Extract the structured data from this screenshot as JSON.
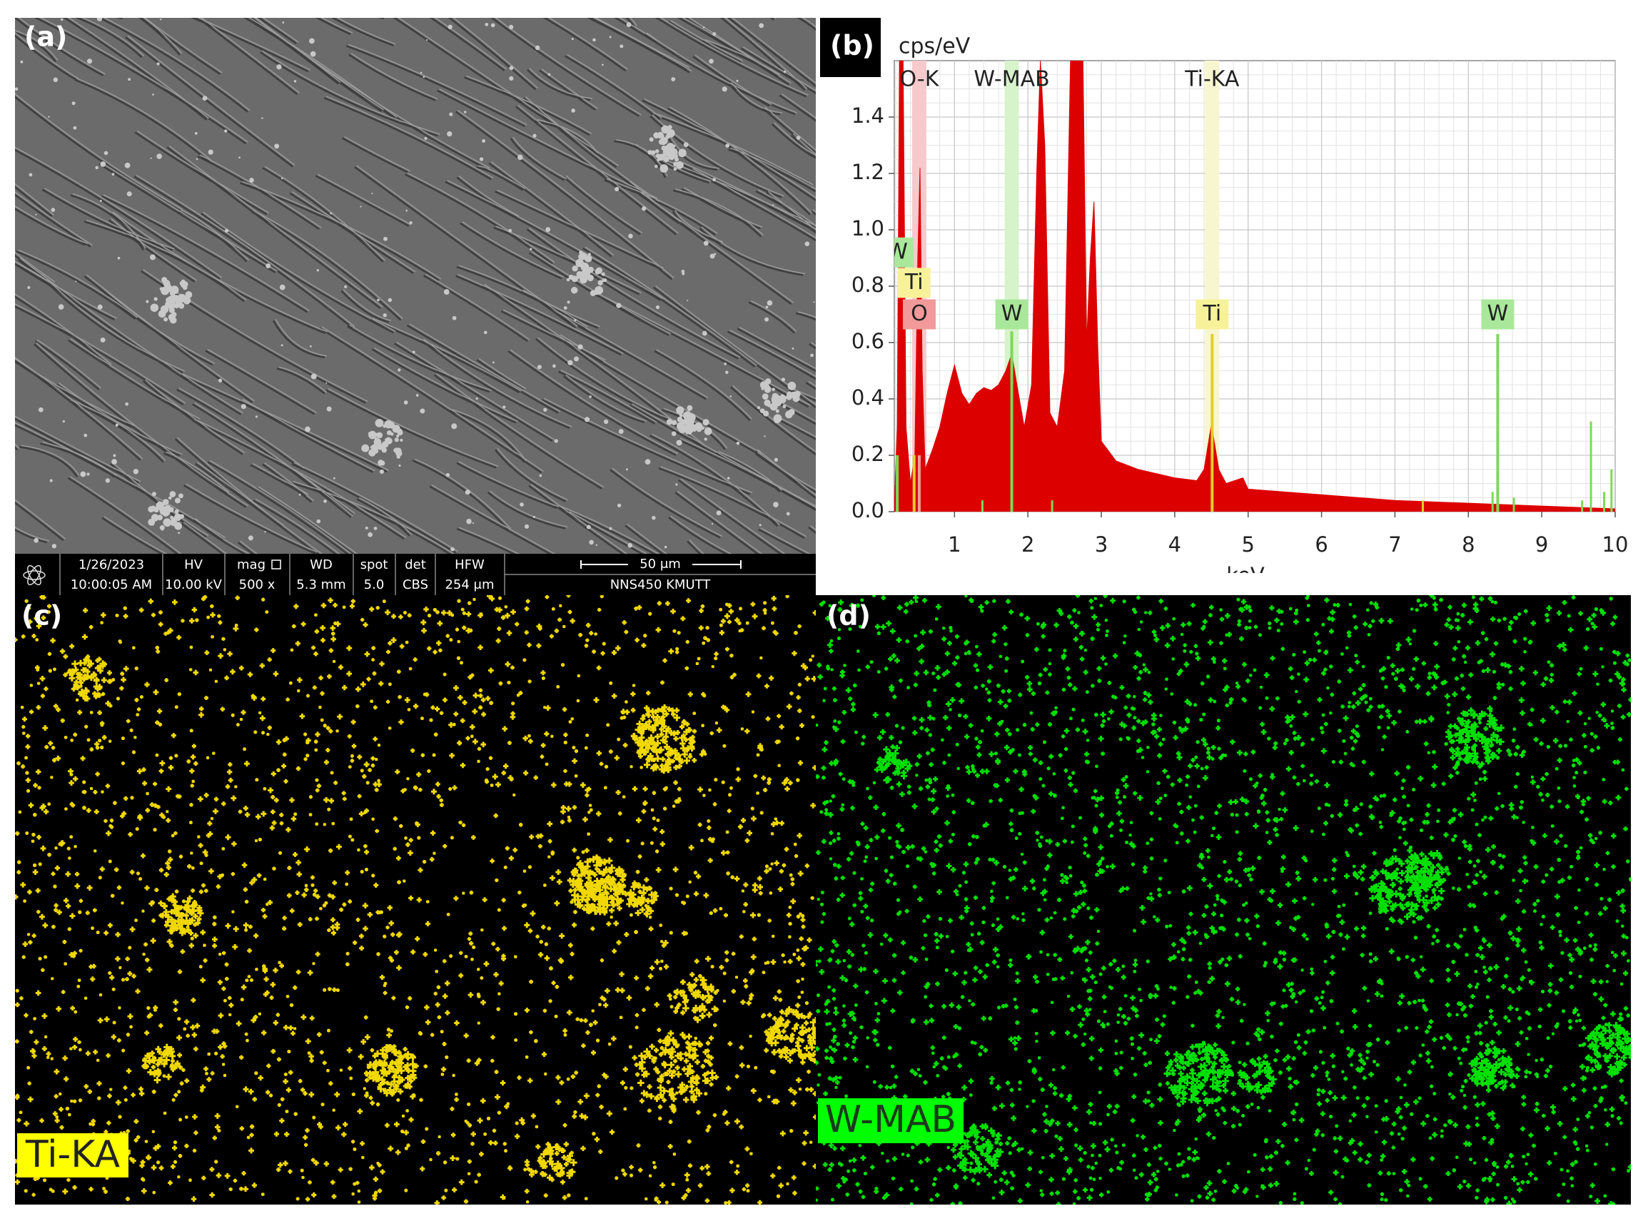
{
  "panels": {
    "a": {
      "label": "(a)",
      "info_bar": {
        "date": "1/26/2023",
        "time": "10:00:05 AM",
        "hv_head": "HV",
        "hv": "10.00 kV",
        "mag_head": "mag",
        "mag": "500 x",
        "wd_head": "WD",
        "wd": "5.3 mm",
        "spot_head": "spot",
        "spot": "5.0",
        "det_head": "det",
        "det": "CBS",
        "hfw_head": "HFW",
        "hfw": "254 μm",
        "scale": "50 μm",
        "instrument": "NNS450 KMUTT"
      }
    },
    "b": {
      "label": "(b)"
    },
    "c": {
      "label": "(c)",
      "map_label": "Ti-KA"
    },
    "d": {
      "label": "(d)",
      "map_label": "W-MAB"
    }
  },
  "chart_data": {
    "type": "area",
    "y_label": "cps/eV",
    "x_label": "keV",
    "color": "#dd0000",
    "x": [
      0.18,
      0.22,
      0.25,
      0.3,
      0.34,
      0.4,
      0.46,
      0.5,
      0.53,
      0.56,
      0.6,
      0.7,
      0.8,
      0.9,
      1.0,
      1.1,
      1.2,
      1.3,
      1.4,
      1.5,
      1.6,
      1.7,
      1.78,
      1.85,
      1.95,
      2.05,
      2.12,
      2.17,
      2.23,
      2.3,
      2.4,
      2.5,
      2.58,
      2.75,
      2.8,
      2.85,
      2.9,
      2.95,
      3.0,
      3.2,
      3.5,
      4.0,
      4.3,
      4.4,
      4.5,
      4.6,
      4.7,
      4.93,
      5.0,
      5.5,
      6.0,
      7.0,
      8.0,
      9.0,
      10.0
    ],
    "values": [
      0.02,
      0.3,
      1.6,
      1.6,
      0.3,
      0.1,
      0.2,
      0.9,
      1.22,
      0.5,
      0.15,
      0.22,
      0.3,
      0.42,
      0.52,
      0.42,
      0.38,
      0.42,
      0.44,
      0.43,
      0.45,
      0.5,
      0.56,
      0.45,
      0.3,
      0.45,
      1.2,
      1.6,
      1.3,
      0.35,
      0.3,
      0.5,
      1.6,
      1.6,
      0.6,
      0.9,
      1.1,
      0.6,
      0.25,
      0.18,
      0.15,
      0.12,
      0.11,
      0.15,
      0.31,
      0.15,
      0.1,
      0.12,
      0.08,
      0.07,
      0.06,
      0.04,
      0.03,
      0.02,
      0.01
    ],
    "xlim": [
      0.18,
      10
    ],
    "ylim": [
      0,
      1.6
    ],
    "xticks": [
      1,
      2,
      3,
      4,
      5,
      6,
      7,
      8,
      9,
      10
    ],
    "yticks": [
      {
        "value": 0,
        "label": "0.0"
      },
      {
        "value": 0.2,
        "label": "0.2"
      },
      {
        "value": 0.4,
        "label": "0.4"
      },
      {
        "value": 0.6,
        "label": "0.6"
      },
      {
        "value": 0.8,
        "label": "0.8"
      },
      {
        "value": 1.0,
        "label": "1.0"
      },
      {
        "value": 1.2,
        "label": "1.2"
      },
      {
        "value": 1.4,
        "label": "1.4"
      }
    ],
    "grid": true,
    "peak_labels": [
      {
        "label": "O-K",
        "energy": 0.52,
        "color": "#f6c9cc"
      },
      {
        "label": "W-MAB",
        "energy": 1.78,
        "color": "#d6f3cc"
      },
      {
        "label": "Ti-KA",
        "energy": 4.51,
        "color": "#f8f6cf"
      }
    ],
    "element_lines": [
      {
        "label": "W",
        "energy": 0.22,
        "height": 0.2,
        "color": "#7ed957",
        "box": "#a9e89a"
      },
      {
        "label": "Ti",
        "energy": 0.45,
        "height": 0.2,
        "color": "#e3cf2a",
        "box": "#f7f29a"
      },
      {
        "label": "O",
        "energy": 0.52,
        "height": 0.2,
        "color": "#f29a9a",
        "box": "#f29a9a"
      },
      {
        "label": "W",
        "energy": 1.78,
        "height": 0.64,
        "color": "#7ed957",
        "box": "#a9e89a"
      },
      {
        "label": "Ti",
        "energy": 4.51,
        "height": 0.63,
        "color": "#e3cf2a",
        "box": "#f7f29a"
      },
      {
        "label": "W",
        "energy": 8.4,
        "height": 0.63,
        "color": "#7ed957",
        "box": "#a9e89a"
      }
    ],
    "minor_lines": [
      {
        "energy": 1.38,
        "height": 0.04,
        "color": "#7ed957"
      },
      {
        "energy": 2.33,
        "height": 0.04,
        "color": "#7ed957"
      },
      {
        "energy": 7.38,
        "height": 0.04,
        "color": "#e3cf2a"
      },
      {
        "energy": 8.33,
        "height": 0.07,
        "color": "#7ed957"
      },
      {
        "energy": 8.62,
        "height": 0.05,
        "color": "#7ed957"
      },
      {
        "energy": 9.55,
        "height": 0.04,
        "color": "#7ed957"
      },
      {
        "energy": 9.67,
        "height": 0.32,
        "color": "#7ed957"
      },
      {
        "energy": 9.85,
        "height": 0.07,
        "color": "#7ed957"
      },
      {
        "energy": 9.95,
        "height": 0.15,
        "color": "#7ed957"
      }
    ]
  }
}
